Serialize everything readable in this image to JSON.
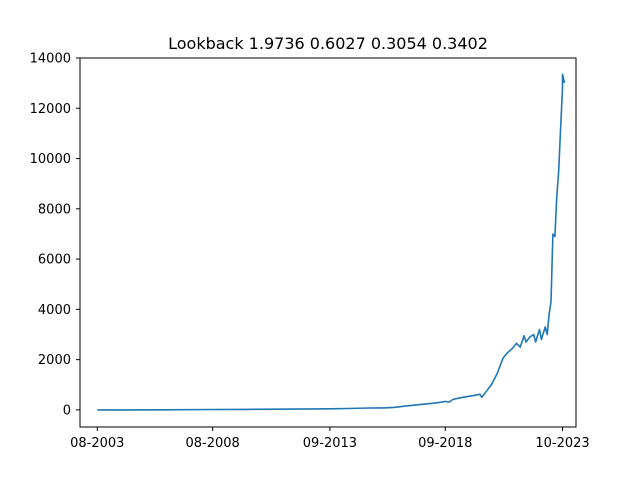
{
  "chart_data": {
    "type": "line",
    "title": "Lookback  1.9736 0.6027 0.3054 0.3402",
    "xlabel": "",
    "ylabel": "",
    "x_ticks": [
      "08-2003",
      "08-2008",
      "09-2013",
      "09-2018",
      "10-2023"
    ],
    "y_ticks": [
      "0",
      "2000",
      "4000",
      "6000",
      "8000",
      "10000",
      "12000",
      "14000"
    ],
    "ylim": [
      -680,
      14000
    ],
    "xlim": [
      "2002-11",
      "2024-05"
    ],
    "grid": false,
    "legend": "none",
    "series": [
      {
        "color": "#1f77b4",
        "points": [
          [
            "2003-08",
            0
          ],
          [
            "2005-01",
            2
          ],
          [
            "2006-06",
            5
          ],
          [
            "2008-08",
            15
          ],
          [
            "2010-01",
            22
          ],
          [
            "2011-06",
            30
          ],
          [
            "2013-09",
            45
          ],
          [
            "2014-06",
            55
          ],
          [
            "2015-06",
            75
          ],
          [
            "2016-01",
            80
          ],
          [
            "2016-06",
            100
          ],
          [
            "2017-01",
            160
          ],
          [
            "2017-06",
            200
          ],
          [
            "2018-01",
            250
          ],
          [
            "2018-06",
            300
          ],
          [
            "2018-09",
            340
          ],
          [
            "2018-11",
            310
          ],
          [
            "2019-01",
            420
          ],
          [
            "2019-06",
            500
          ],
          [
            "2019-11",
            560
          ],
          [
            "2020-03",
            620
          ],
          [
            "2020-04",
            500
          ],
          [
            "2020-06",
            700
          ],
          [
            "2020-09",
            1000
          ],
          [
            "2020-12",
            1450
          ],
          [
            "2021-03",
            2050
          ],
          [
            "2021-05",
            2250
          ],
          [
            "2021-08",
            2450
          ],
          [
            "2021-10",
            2650
          ],
          [
            "2021-12",
            2500
          ],
          [
            "2022-02",
            2950
          ],
          [
            "2022-03",
            2700
          ],
          [
            "2022-05",
            2900
          ],
          [
            "2022-07",
            3000
          ],
          [
            "2022-08",
            2700
          ],
          [
            "2022-10",
            3200
          ],
          [
            "2022-11",
            2800
          ],
          [
            "2023-01",
            3300
          ],
          [
            "2023-02",
            3000
          ],
          [
            "2023-03",
            3800
          ],
          [
            "2023-04",
            4300
          ],
          [
            "2023-05",
            7000
          ],
          [
            "2023-06",
            6900
          ],
          [
            "2023-07",
            8500
          ],
          [
            "2023-08",
            9500
          ],
          [
            "2023-09",
            11200
          ],
          [
            "2023-10",
            12800
          ],
          [
            "2023-10",
            13350
          ],
          [
            "2023-11",
            13000
          ]
        ]
      }
    ]
  }
}
